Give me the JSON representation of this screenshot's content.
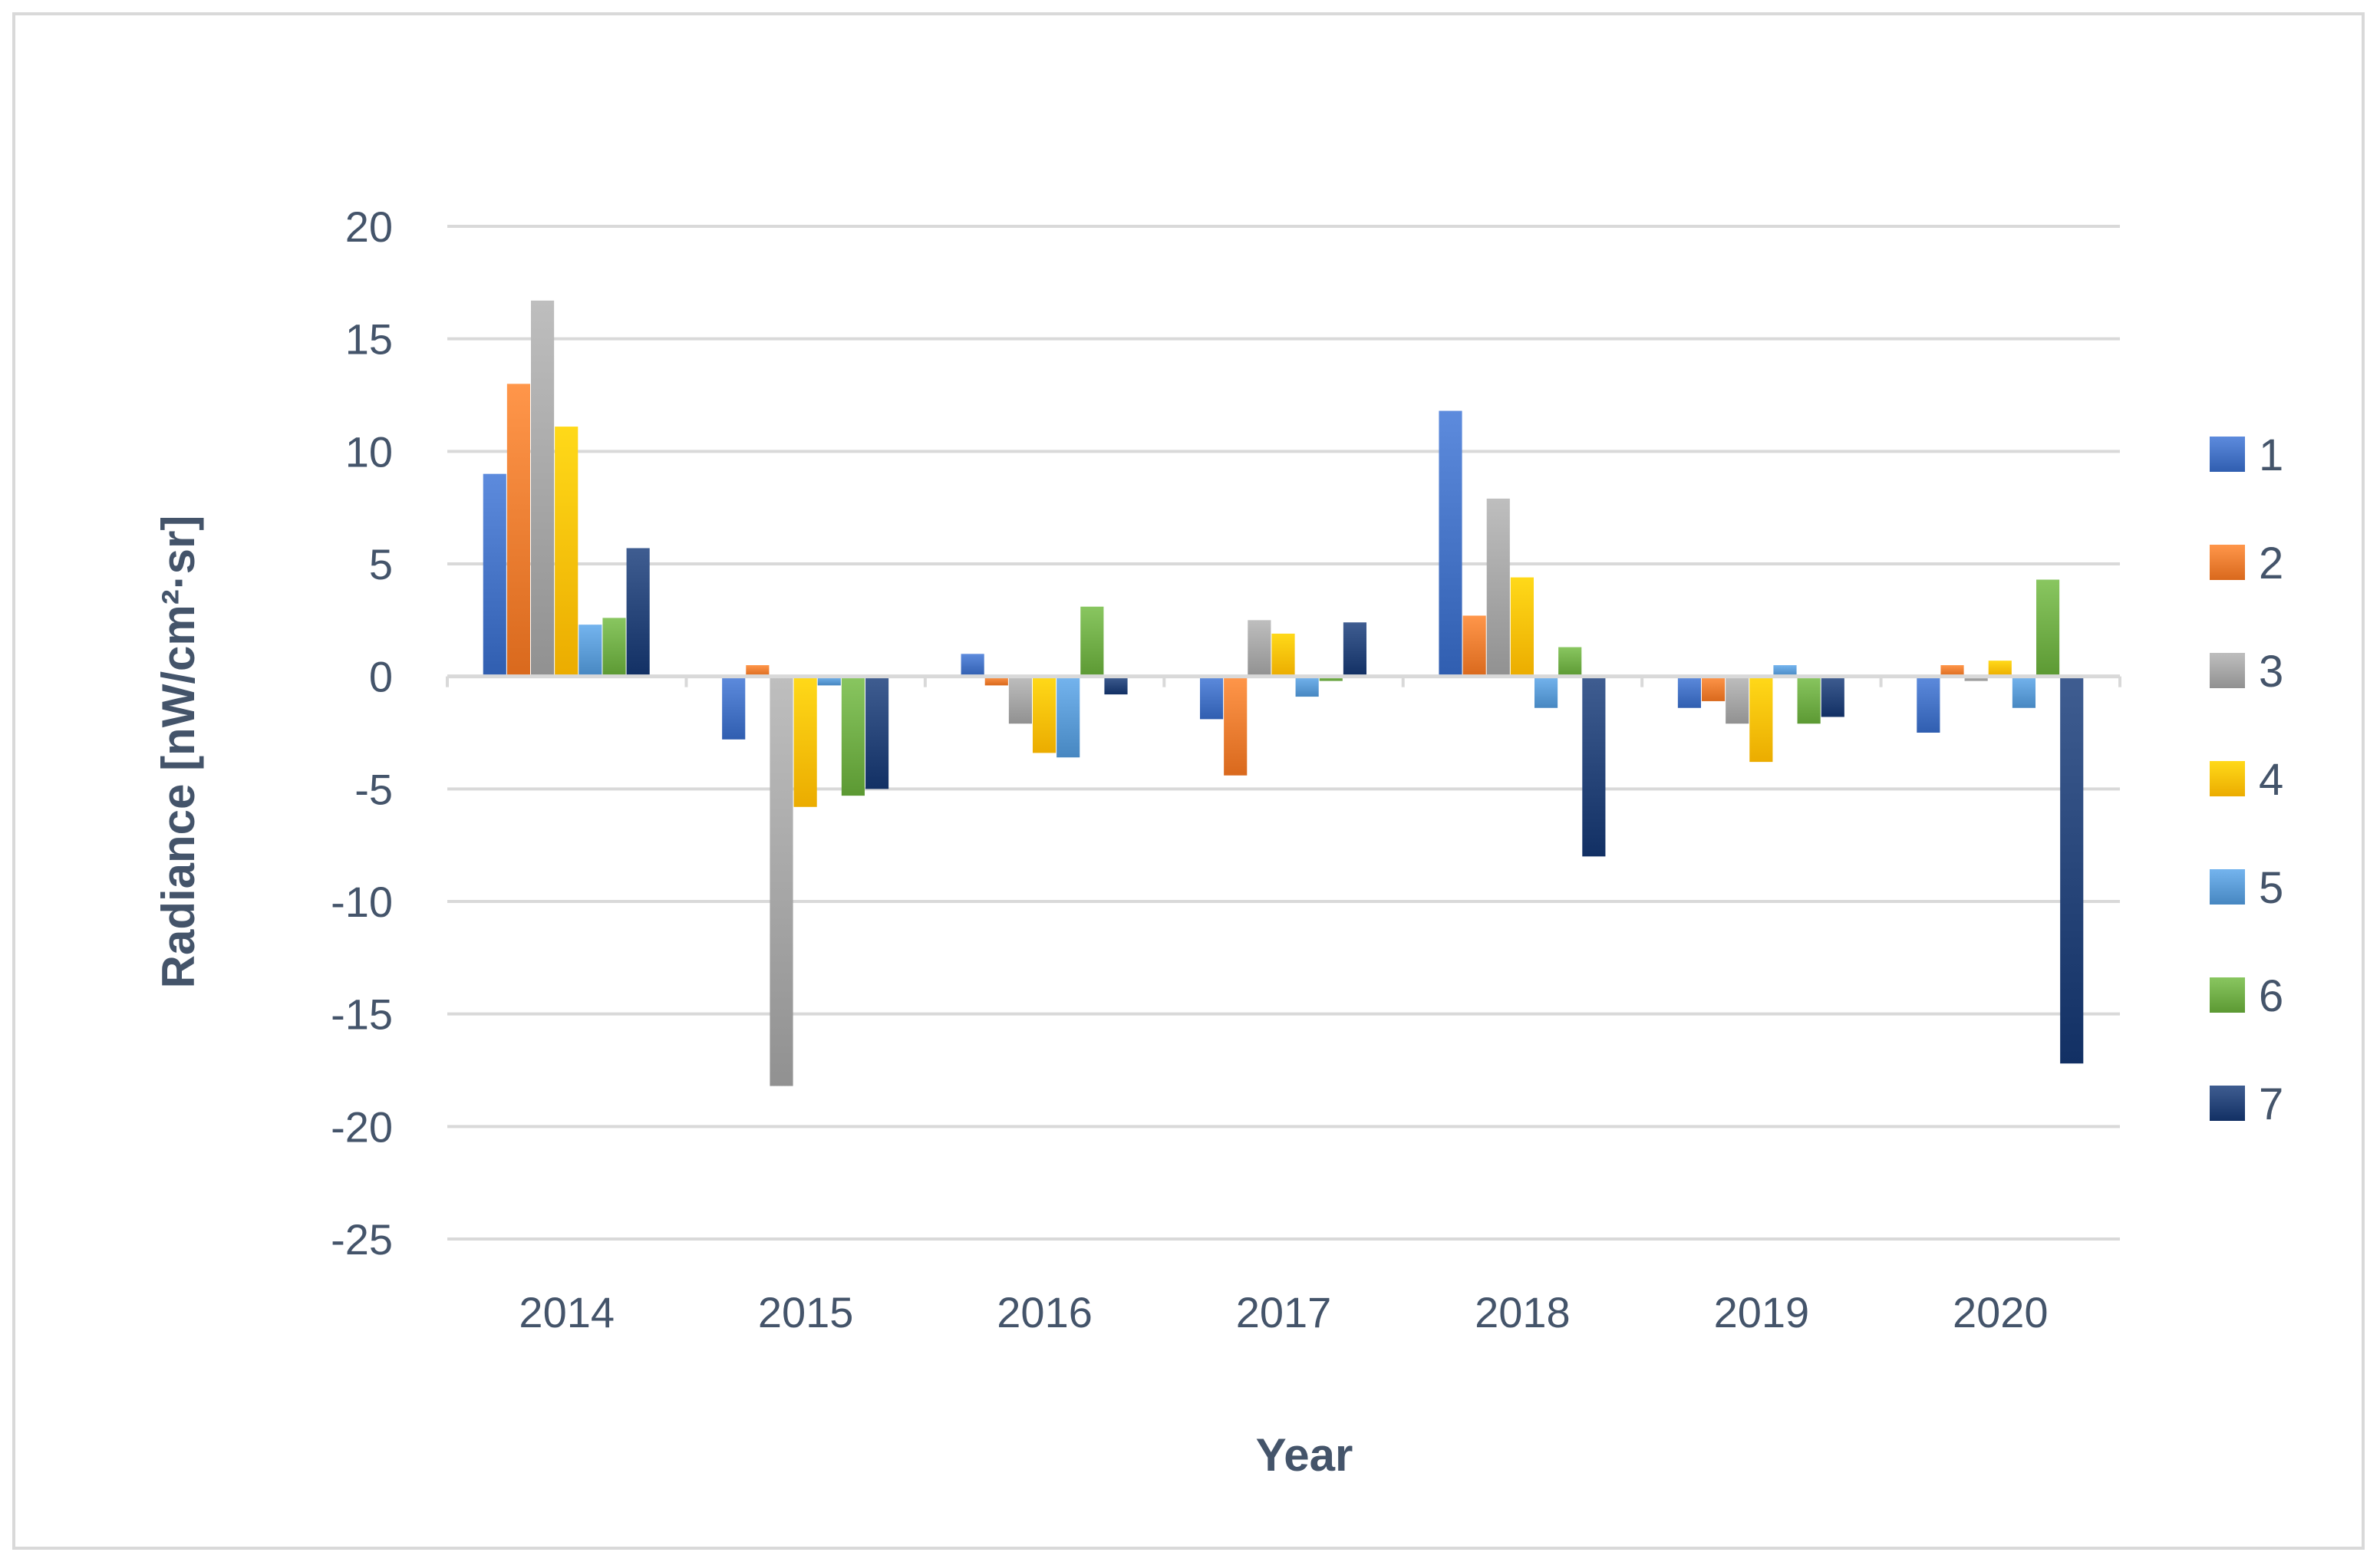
{
  "chart_data": {
    "type": "bar",
    "title": "",
    "xlabel": "Year",
    "ylabel": "Radiance  [nW/cm²·sr]",
    "categories": [
      "2014",
      "2015",
      "2016",
      "2017",
      "2018",
      "2019",
      "2020"
    ],
    "ylim": [
      -25,
      20
    ],
    "yticks": [
      20,
      15,
      10,
      5,
      0,
      -5,
      -10,
      -15,
      -20,
      -25
    ],
    "grid": true,
    "legend": "right",
    "series": [
      {
        "name": "1",
        "color": "#4472c4",
        "values": [
          9.0,
          -2.8,
          1.0,
          -1.9,
          11.8,
          -1.4,
          -2.5
        ]
      },
      {
        "name": "2",
        "color": "#ed7d31",
        "values": [
          13.0,
          0.5,
          -0.4,
          -4.4,
          2.7,
          -1.1,
          0.5
        ]
      },
      {
        "name": "3",
        "color": "#a5a5a5",
        "values": [
          16.7,
          -18.2,
          -2.1,
          2.5,
          7.9,
          -2.1,
          -0.2
        ]
      },
      {
        "name": "4",
        "color": "#ffc000",
        "values": [
          11.1,
          -5.8,
          -3.4,
          1.9,
          4.4,
          -3.8,
          0.7
        ]
      },
      {
        "name": "5",
        "color": "#5b9bd5",
        "values": [
          2.3,
          -0.4,
          -3.6,
          -0.9,
          -1.4,
          0.5,
          -1.4
        ]
      },
      {
        "name": "6",
        "color": "#70ad47",
        "values": [
          2.6,
          -5.3,
          3.1,
          -0.2,
          1.3,
          -2.1,
          4.3
        ]
      },
      {
        "name": "7",
        "color": "#264478",
        "values": [
          5.7,
          -5.0,
          -0.8,
          2.4,
          -8.0,
          -1.8,
          -17.2
        ]
      }
    ]
  }
}
